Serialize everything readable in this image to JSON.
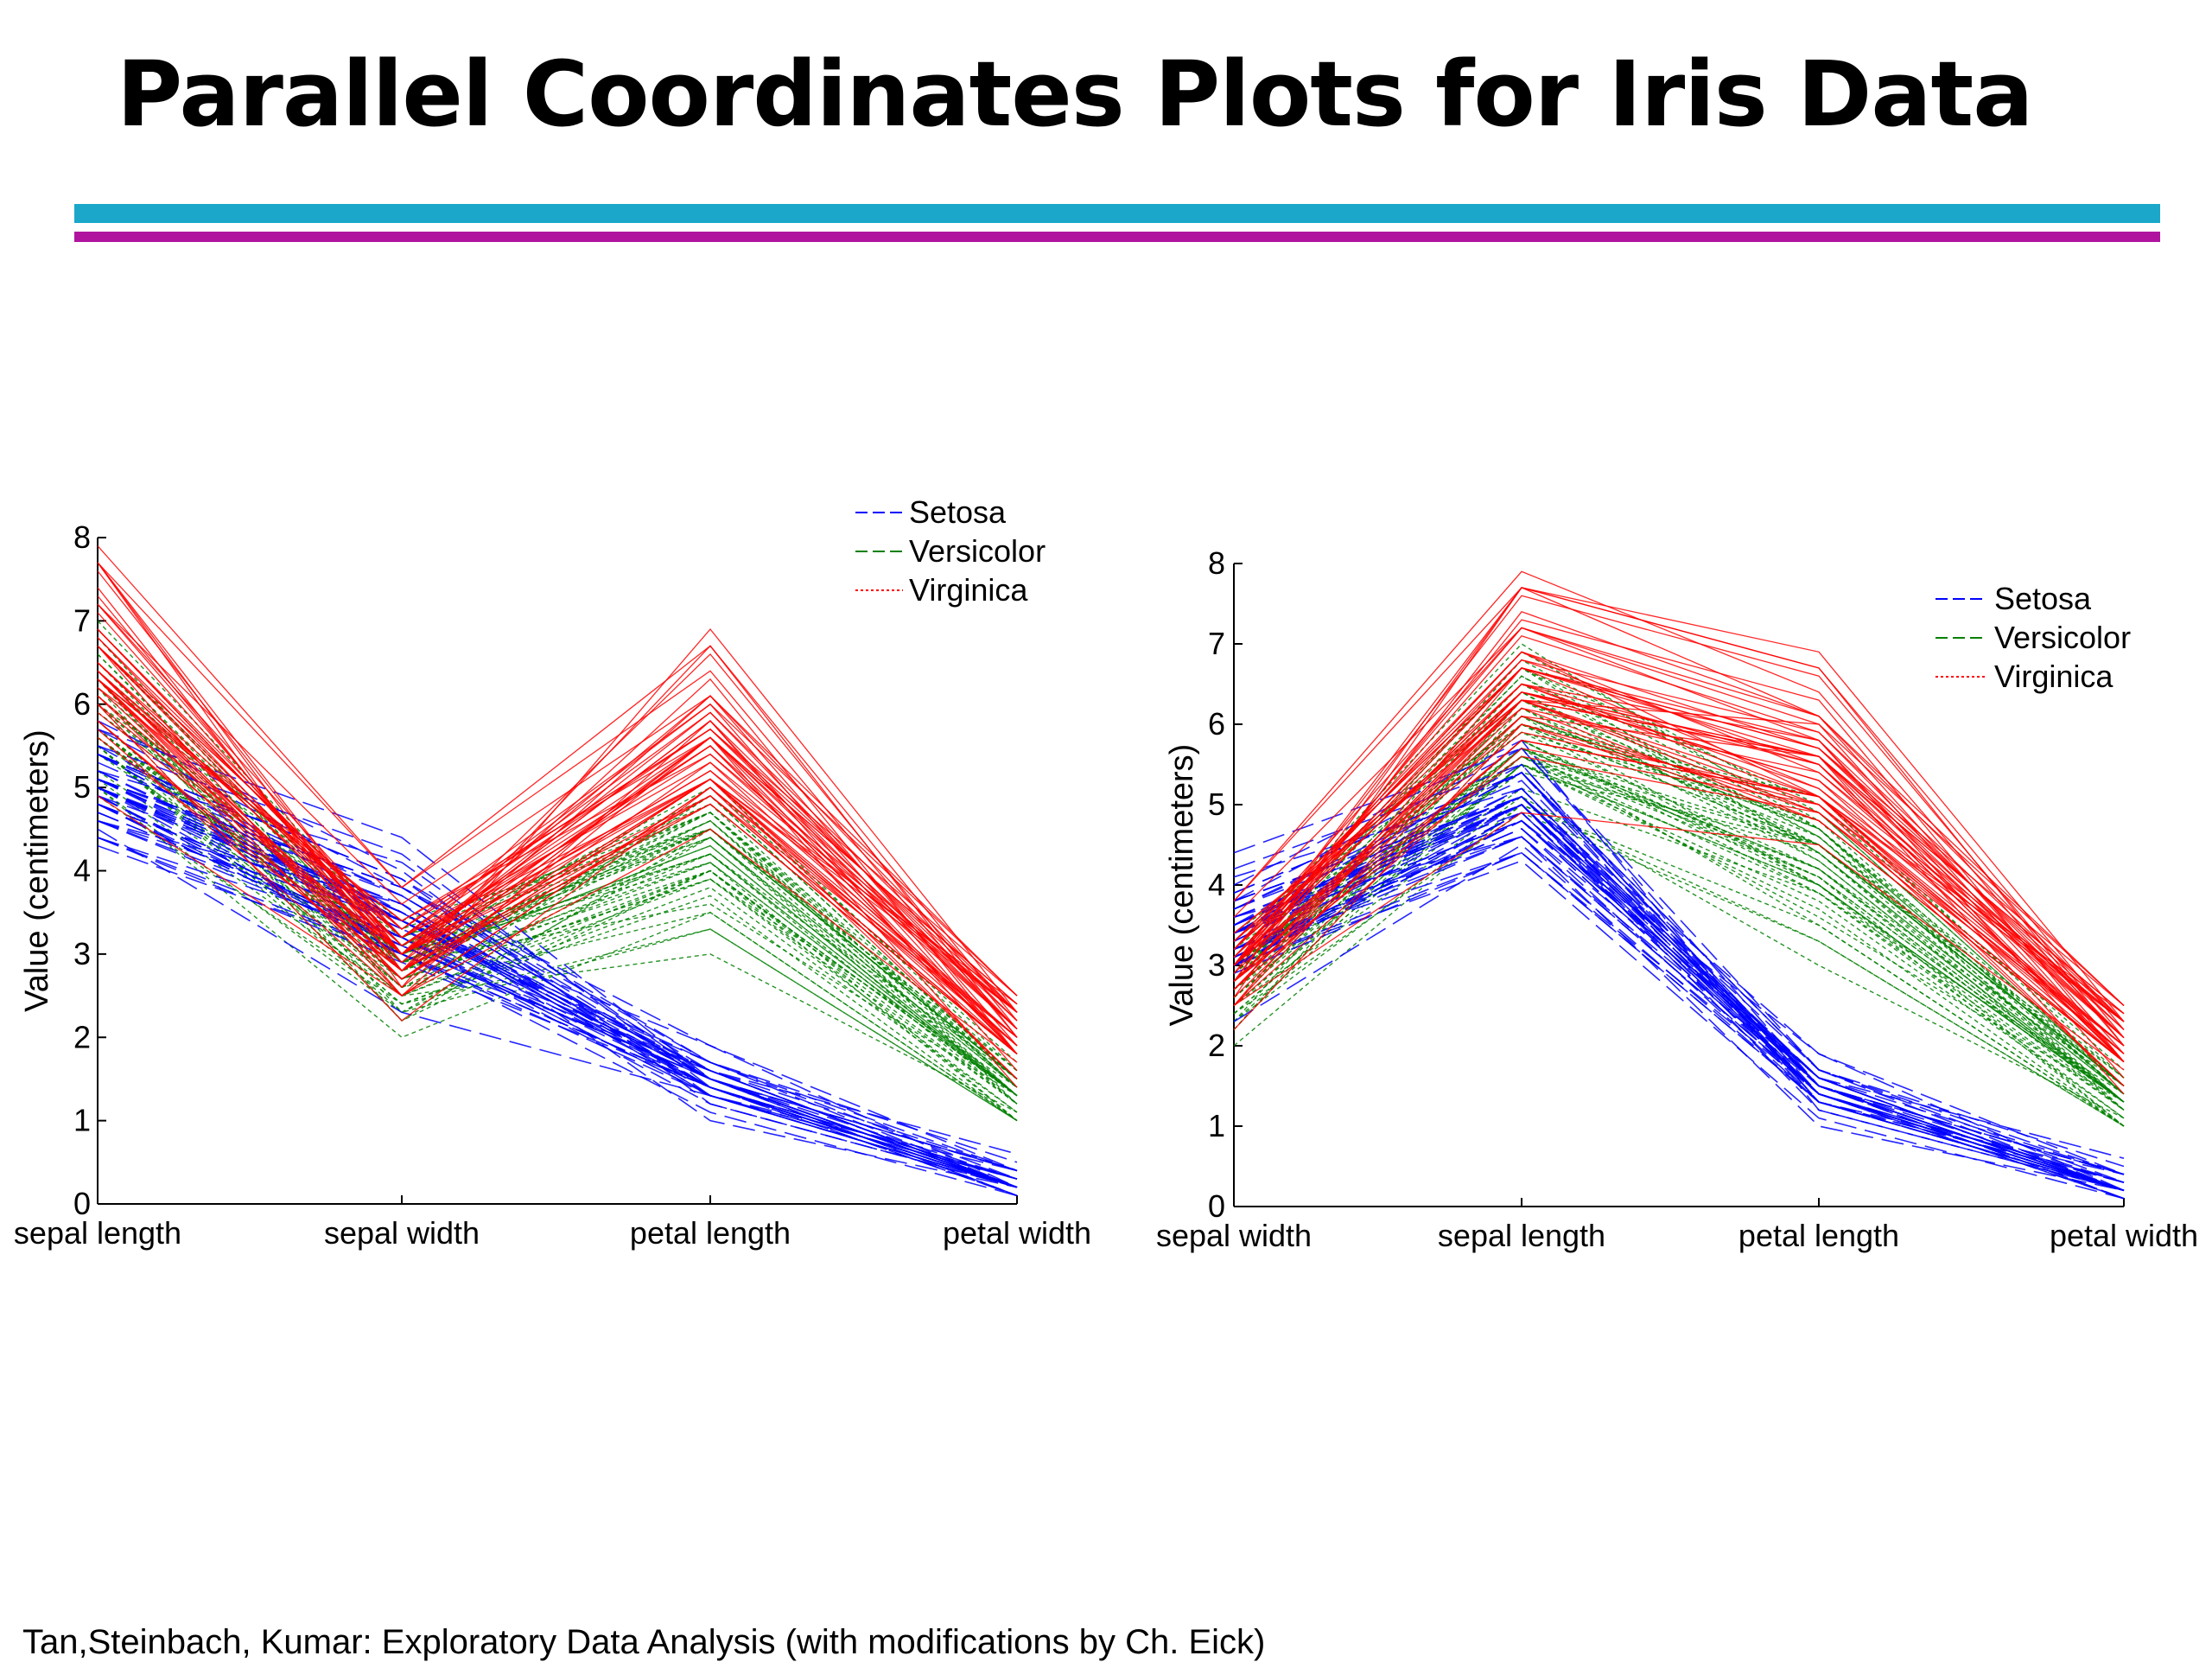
{
  "slide": {
    "title": "Parallel Coordinates Plots for Iris Data",
    "footer": "Tan,Steinbach, Kumar: Exploratory Data Analysis (with modifications by Ch. Eick)",
    "rule_colors": {
      "cyan": "#1aa7c9",
      "magenta": "#b0149f"
    }
  },
  "colors": {
    "Setosa": "#0000ff",
    "Versicolor": "#008000",
    "Virginica": "#ff0000"
  },
  "chart_data": [
    {
      "type": "parallel-coordinates",
      "title": "",
      "ylabel": "Value (centimeters)",
      "ylim": [
        0,
        8
      ],
      "yticks": [
        "0",
        "1",
        "2",
        "3",
        "4",
        "5",
        "6",
        "7",
        "8"
      ],
      "axes": [
        "sepal length",
        "sepal width",
        "petal length",
        "petal width"
      ],
      "legend": {
        "placement": "top-right-outside",
        "entries": [
          "Setosa",
          "Versicolor",
          "Virginica"
        ]
      },
      "series": [
        {
          "name": "Setosa",
          "lines": [
            [
              5.1,
              3.5,
              1.4,
              0.2
            ],
            [
              4.9,
              3.0,
              1.4,
              0.2
            ],
            [
              4.7,
              3.2,
              1.3,
              0.2
            ],
            [
              4.6,
              3.1,
              1.5,
              0.2
            ],
            [
              5.0,
              3.6,
              1.4,
              0.2
            ],
            [
              5.4,
              3.9,
              1.7,
              0.4
            ],
            [
              4.6,
              3.4,
              1.4,
              0.3
            ],
            [
              5.0,
              3.4,
              1.5,
              0.2
            ],
            [
              4.4,
              2.9,
              1.4,
              0.2
            ],
            [
              4.9,
              3.1,
              1.5,
              0.1
            ],
            [
              5.4,
              3.7,
              1.5,
              0.2
            ],
            [
              4.8,
              3.4,
              1.6,
              0.2
            ],
            [
              4.8,
              3.0,
              1.4,
              0.1
            ],
            [
              4.3,
              3.0,
              1.1,
              0.1
            ],
            [
              5.8,
              4.0,
              1.2,
              0.2
            ],
            [
              5.7,
              4.4,
              1.5,
              0.4
            ],
            [
              5.4,
              3.9,
              1.3,
              0.4
            ],
            [
              5.1,
              3.5,
              1.4,
              0.3
            ],
            [
              5.7,
              3.8,
              1.7,
              0.3
            ],
            [
              5.1,
              3.8,
              1.5,
              0.3
            ],
            [
              5.4,
              3.4,
              1.7,
              0.2
            ],
            [
              5.1,
              3.7,
              1.5,
              0.4
            ],
            [
              4.6,
              3.6,
              1.0,
              0.2
            ],
            [
              5.1,
              3.3,
              1.7,
              0.5
            ],
            [
              4.8,
              3.4,
              1.9,
              0.2
            ],
            [
              5.0,
              3.0,
              1.6,
              0.2
            ],
            [
              5.0,
              3.4,
              1.6,
              0.4
            ],
            [
              5.2,
              3.5,
              1.5,
              0.2
            ],
            [
              5.2,
              3.4,
              1.4,
              0.2
            ],
            [
              4.7,
              3.2,
              1.6,
              0.2
            ],
            [
              4.8,
              3.1,
              1.6,
              0.2
            ],
            [
              5.4,
              3.4,
              1.5,
              0.4
            ],
            [
              5.2,
              4.1,
              1.5,
              0.1
            ],
            [
              5.5,
              4.2,
              1.4,
              0.2
            ],
            [
              4.9,
              3.1,
              1.5,
              0.2
            ],
            [
              5.0,
              3.2,
              1.2,
              0.2
            ],
            [
              5.5,
              3.5,
              1.3,
              0.2
            ],
            [
              4.9,
              3.6,
              1.4,
              0.1
            ],
            [
              4.4,
              3.0,
              1.3,
              0.2
            ],
            [
              5.1,
              3.4,
              1.5,
              0.2
            ],
            [
              5.0,
              3.5,
              1.3,
              0.3
            ],
            [
              4.5,
              2.3,
              1.3,
              0.3
            ],
            [
              4.4,
              3.2,
              1.3,
              0.2
            ],
            [
              5.0,
              3.5,
              1.6,
              0.6
            ],
            [
              5.1,
              3.8,
              1.9,
              0.4
            ],
            [
              4.8,
              3.0,
              1.4,
              0.3
            ],
            [
              5.1,
              3.8,
              1.6,
              0.2
            ],
            [
              4.6,
              3.2,
              1.4,
              0.2
            ],
            [
              5.3,
              3.7,
              1.5,
              0.2
            ],
            [
              5.0,
              3.3,
              1.4,
              0.2
            ]
          ]
        },
        {
          "name": "Versicolor",
          "lines": [
            [
              7.0,
              3.2,
              4.7,
              1.4
            ],
            [
              6.4,
              3.2,
              4.5,
              1.5
            ],
            [
              6.9,
              3.1,
              4.9,
              1.5
            ],
            [
              5.5,
              2.3,
              4.0,
              1.3
            ],
            [
              6.5,
              2.8,
              4.6,
              1.5
            ],
            [
              5.7,
              2.8,
              4.5,
              1.3
            ],
            [
              6.3,
              3.3,
              4.7,
              1.6
            ],
            [
              4.9,
              2.4,
              3.3,
              1.0
            ],
            [
              6.6,
              2.9,
              4.6,
              1.3
            ],
            [
              5.2,
              2.7,
              3.9,
              1.4
            ],
            [
              5.0,
              2.0,
              3.5,
              1.0
            ],
            [
              5.9,
              3.0,
              4.2,
              1.5
            ],
            [
              6.0,
              2.2,
              4.0,
              1.0
            ],
            [
              6.1,
              2.9,
              4.7,
              1.4
            ],
            [
              5.6,
              2.9,
              3.6,
              1.3
            ],
            [
              6.7,
              3.1,
              4.4,
              1.4
            ],
            [
              5.6,
              3.0,
              4.5,
              1.5
            ],
            [
              5.8,
              2.7,
              4.1,
              1.0
            ],
            [
              6.2,
              2.2,
              4.5,
              1.5
            ],
            [
              5.6,
              2.5,
              3.9,
              1.1
            ],
            [
              5.9,
              3.2,
              4.8,
              1.8
            ],
            [
              6.1,
              2.8,
              4.0,
              1.3
            ],
            [
              6.3,
              2.5,
              4.9,
              1.5
            ],
            [
              6.1,
              2.8,
              4.7,
              1.2
            ],
            [
              6.4,
              2.9,
              4.3,
              1.3
            ],
            [
              6.6,
              3.0,
              4.4,
              1.4
            ],
            [
              6.8,
              2.8,
              4.8,
              1.4
            ],
            [
              6.7,
              3.0,
              5.0,
              1.7
            ],
            [
              6.0,
              2.9,
              4.5,
              1.5
            ],
            [
              5.7,
              2.6,
              3.5,
              1.0
            ],
            [
              5.5,
              2.4,
              3.8,
              1.1
            ],
            [
              5.5,
              2.4,
              3.7,
              1.0
            ],
            [
              5.8,
              2.7,
              3.9,
              1.2
            ],
            [
              6.0,
              2.7,
              5.1,
              1.6
            ],
            [
              5.4,
              3.0,
              4.5,
              1.5
            ],
            [
              6.0,
              3.4,
              4.5,
              1.6
            ],
            [
              6.7,
              3.1,
              4.7,
              1.5
            ],
            [
              6.3,
              2.3,
              4.4,
              1.3
            ],
            [
              5.6,
              3.0,
              4.1,
              1.3
            ],
            [
              5.5,
              2.5,
              4.0,
              1.3
            ],
            [
              5.5,
              2.6,
              4.4,
              1.2
            ],
            [
              6.1,
              3.0,
              4.6,
              1.4
            ],
            [
              5.8,
              2.6,
              4.0,
              1.2
            ],
            [
              5.0,
              2.3,
              3.3,
              1.0
            ],
            [
              5.6,
              2.7,
              4.2,
              1.3
            ],
            [
              5.7,
              3.0,
              4.2,
              1.2
            ],
            [
              5.7,
              2.9,
              4.2,
              1.3
            ],
            [
              6.2,
              2.9,
              4.3,
              1.3
            ],
            [
              5.1,
              2.5,
              3.0,
              1.1
            ],
            [
              5.7,
              2.8,
              4.1,
              1.3
            ]
          ]
        },
        {
          "name": "Virginica",
          "lines": [
            [
              6.3,
              3.3,
              6.0,
              2.5
            ],
            [
              5.8,
              2.7,
              5.1,
              1.9
            ],
            [
              7.1,
              3.0,
              5.9,
              2.1
            ],
            [
              6.3,
              2.9,
              5.6,
              1.8
            ],
            [
              6.5,
              3.0,
              5.8,
              2.2
            ],
            [
              7.6,
              3.0,
              6.6,
              2.1
            ],
            [
              4.9,
              2.5,
              4.5,
              1.7
            ],
            [
              7.3,
              2.9,
              6.3,
              1.8
            ],
            [
              6.7,
              2.5,
              5.8,
              1.8
            ],
            [
              7.2,
              3.6,
              6.1,
              2.5
            ],
            [
              6.5,
              3.2,
              5.1,
              2.0
            ],
            [
              6.4,
              2.7,
              5.3,
              1.9
            ],
            [
              6.8,
              3.0,
              5.5,
              2.1
            ],
            [
              5.7,
              2.5,
              5.0,
              2.0
            ],
            [
              5.8,
              2.8,
              5.1,
              2.4
            ],
            [
              6.4,
              3.2,
              5.3,
              2.3
            ],
            [
              6.5,
              3.0,
              5.5,
              1.8
            ],
            [
              7.7,
              3.8,
              6.7,
              2.2
            ],
            [
              7.7,
              2.6,
              6.9,
              2.3
            ],
            [
              6.0,
              2.2,
              5.0,
              1.5
            ],
            [
              6.9,
              3.2,
              5.7,
              2.3
            ],
            [
              5.6,
              2.8,
              4.9,
              2.0
            ],
            [
              7.7,
              2.8,
              6.7,
              2.0
            ],
            [
              6.3,
              2.7,
              4.9,
              1.8
            ],
            [
              6.7,
              3.3,
              5.7,
              2.1
            ],
            [
              7.2,
              3.2,
              6.0,
              1.8
            ],
            [
              6.2,
              2.8,
              4.8,
              1.8
            ],
            [
              6.1,
              3.0,
              4.9,
              1.8
            ],
            [
              6.4,
              2.8,
              5.6,
              2.1
            ],
            [
              7.2,
              3.0,
              5.8,
              1.6
            ],
            [
              7.4,
              2.8,
              6.1,
              1.9
            ],
            [
              7.9,
              3.8,
              6.4,
              2.0
            ],
            [
              6.4,
              2.8,
              5.6,
              2.2
            ],
            [
              6.3,
              2.8,
              5.1,
              1.5
            ],
            [
              6.1,
              2.6,
              5.6,
              1.4
            ],
            [
              7.7,
              3.0,
              6.1,
              2.3
            ],
            [
              6.3,
              3.4,
              5.6,
              2.4
            ],
            [
              6.4,
              3.1,
              5.5,
              1.8
            ],
            [
              6.0,
              3.0,
              4.8,
              1.8
            ],
            [
              6.9,
              3.1,
              5.4,
              2.1
            ],
            [
              6.7,
              3.1,
              5.6,
              2.4
            ],
            [
              6.9,
              3.1,
              5.1,
              2.3
            ],
            [
              5.8,
              2.7,
              5.1,
              1.9
            ],
            [
              6.8,
              3.2,
              5.9,
              2.3
            ],
            [
              6.7,
              3.3,
              5.7,
              2.5
            ],
            [
              6.7,
              3.0,
              5.2,
              2.3
            ],
            [
              6.3,
              2.5,
              5.0,
              1.9
            ],
            [
              6.5,
              3.0,
              5.2,
              2.0
            ],
            [
              6.2,
              3.4,
              5.4,
              2.3
            ],
            [
              5.9,
              3.0,
              5.1,
              1.8
            ]
          ]
        }
      ]
    },
    {
      "type": "parallel-coordinates",
      "title": "",
      "ylabel": "Value (centimeters)",
      "ylim": [
        0,
        8
      ],
      "yticks": [
        "0",
        "1",
        "2",
        "3",
        "4",
        "5",
        "6",
        "7",
        "8"
      ],
      "axes": [
        "sepal width",
        "sepal length",
        "petal length",
        "petal width"
      ],
      "axis_order_from_first": [
        1,
        0,
        2,
        3
      ],
      "legend": {
        "placement": "top-right",
        "entries": [
          "Setosa",
          "Versicolor",
          "Virginica"
        ]
      }
    }
  ]
}
